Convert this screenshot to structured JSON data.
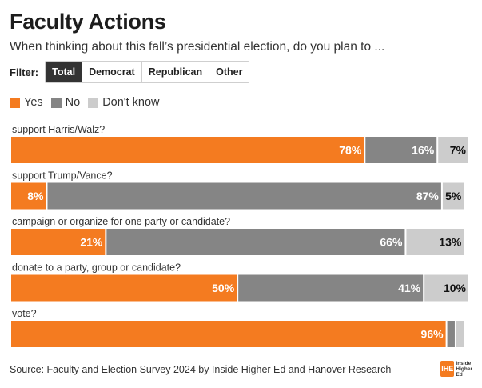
{
  "header": {
    "title": "Faculty Actions",
    "subtitle": "When thinking about this fall’s presidential election, do you plan to ..."
  },
  "filter": {
    "label": "Filter:",
    "options": [
      "Total",
      "Democrat",
      "Republican",
      "Other"
    ],
    "selected": "Total"
  },
  "colors": {
    "yes": "#f47b20",
    "no": "#858585",
    "dont_know": "#cccccc"
  },
  "chart_data": {
    "type": "bar",
    "orientation": "horizontal",
    "stacked": true,
    "categories": [
      "support Harris/Walz?",
      "support Trump/Vance?",
      "campaign or organize for one party or candidate?",
      "donate to a party, group or candidate?",
      "vote?"
    ],
    "series": [
      {
        "name": "Yes",
        "values": [
          78,
          8,
          21,
          50,
          96
        ],
        "labels": [
          "78%",
          "8%",
          "21%",
          "50%",
          "96%"
        ]
      },
      {
        "name": "No",
        "values": [
          16,
          87,
          66,
          41,
          2
        ],
        "labels": [
          "16%",
          "87%",
          "66%",
          "41%",
          ""
        ]
      },
      {
        "name": "Don't know",
        "values": [
          7,
          5,
          13,
          10,
          2
        ],
        "labels": [
          "7%",
          "5%",
          "13%",
          "10%",
          ""
        ]
      }
    ],
    "xlim": [
      0,
      101
    ],
    "legend": "top-left",
    "grid": false
  },
  "footer": {
    "source": "Source: Faculty and Election Survey 2024 by Inside Higher Ed and Hanover Research",
    "logo_mark": "IHE",
    "logo_text": [
      "Inside",
      "Higher",
      "Ed"
    ]
  }
}
